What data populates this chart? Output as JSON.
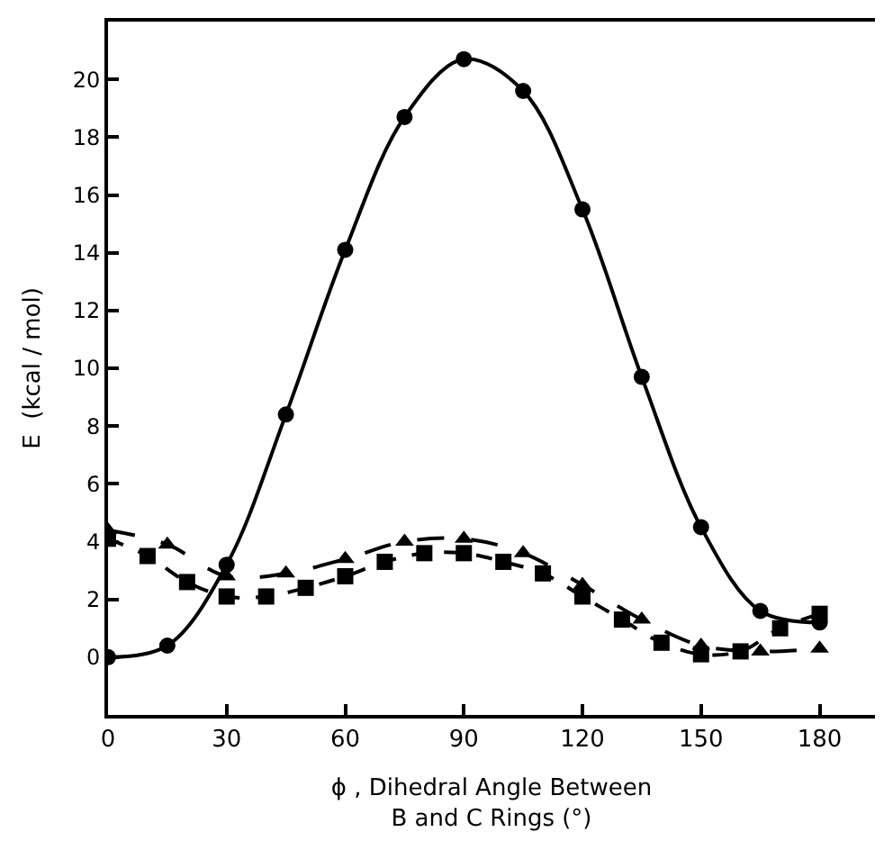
{
  "chart_data": {
    "type": "line",
    "xlabel": "ϕ , Dihedral Angle Between\nB and C Rings (°)",
    "ylabel": "E  (kcal / mol)",
    "xlim": [
      0,
      194
    ],
    "xticks": [
      0,
      30,
      60,
      90,
      120,
      150,
      180
    ],
    "ylim": [
      -2,
      22
    ],
    "yticks": [
      0,
      2,
      4,
      6,
      8,
      10,
      12,
      14,
      16,
      18,
      20
    ],
    "series": [
      {
        "color": "#000000",
        "marker": "circle",
        "line_style": "solid",
        "x": [
          0,
          15,
          30,
          45,
          60,
          75,
          90,
          105,
          120,
          135,
          150,
          165,
          180
        ],
        "values": [
          0,
          0.4,
          3.2,
          8.4,
          14.1,
          18.7,
          20.7,
          19.6,
          15.5,
          9.7,
          4.5,
          1.6,
          1.2
        ]
      },
      {
        "color": "#000000",
        "marker": "triangle",
        "line_style": "dashed",
        "x": [
          0,
          15,
          30,
          45,
          60,
          75,
          90,
          105,
          120,
          135,
          150,
          165,
          180
        ],
        "values": [
          4.4,
          3.9,
          2.8,
          2.9,
          3.4,
          4.0,
          4.1,
          3.6,
          2.5,
          1.3,
          0.4,
          0.2,
          0.3
        ]
      },
      {
        "color": "#000000",
        "marker": "square",
        "line_style": "dotted",
        "x": [
          0,
          10,
          20,
          30,
          40,
          50,
          60,
          70,
          80,
          90,
          100,
          110,
          120,
          130,
          140,
          150,
          160,
          170,
          180
        ],
        "values": [
          4.1,
          3.5,
          2.6,
          2.1,
          2.1,
          2.4,
          2.8,
          3.3,
          3.6,
          3.6,
          3.3,
          2.9,
          2.1,
          1.3,
          0.5,
          0.1,
          0.2,
          1.0,
          1.5
        ]
      }
    ]
  }
}
